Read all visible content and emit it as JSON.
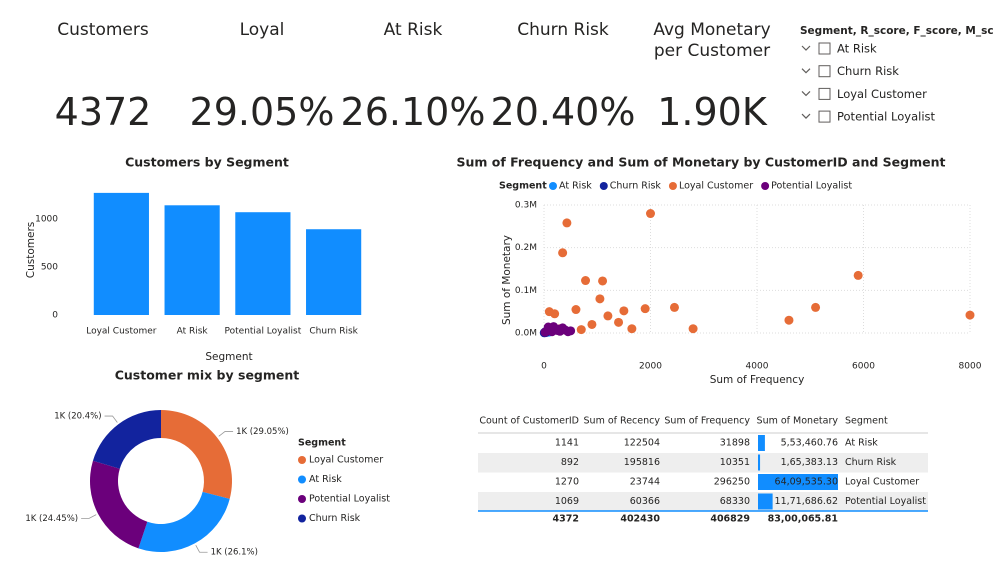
{
  "cards": [
    {
      "label": "Customers",
      "value": "4372"
    },
    {
      "label": "Loyal",
      "value": "29.05%"
    },
    {
      "label": "At Risk",
      "value": "26.10%"
    },
    {
      "label": "Churn Risk",
      "value": "20.40%"
    },
    {
      "label": "Avg Monetary per Customer",
      "value": "1.90K"
    }
  ],
  "slicer": {
    "title": "Segment, R_score, F_score, M_score",
    "items": [
      "At Risk",
      "Churn Risk",
      "Loyal Customer",
      "Potential Loyalist"
    ]
  },
  "chart_data": [
    {
      "type": "bar",
      "title": "Customers by Segment",
      "x_label": "Segment",
      "y_label": "Customers",
      "categories": [
        "Loyal Customer",
        "At Risk",
        "Potential Loyalist",
        "Churn Risk"
      ],
      "values": [
        1270,
        1141,
        1069,
        892
      ],
      "color": "#118DFF",
      "ylim": [
        0,
        1300
      ],
      "yticks": [
        0,
        500,
        1000
      ]
    },
    {
      "type": "scatter",
      "title": "Sum of Frequency and Sum of Monetary by CustomerID and Segment",
      "legend_title": "Segment",
      "x_label": "Sum of Frequency",
      "y_label": "Sum of Monetary",
      "grid": true,
      "xlim": [
        0,
        8000
      ],
      "xticks": [
        0,
        2000,
        4000,
        6000,
        8000
      ],
      "ylim": [
        0,
        300000
      ],
      "yticks": [
        {
          "value": 0,
          "label": "0.0M"
        },
        {
          "value": 100000,
          "label": "0.1M"
        },
        {
          "value": 200000,
          "label": "0.2M"
        },
        {
          "value": 300000,
          "label": "0.3M"
        }
      ],
      "series": [
        {
          "name": "At Risk",
          "color": "#118DFF",
          "x": [
            10,
            40,
            90,
            130,
            70
          ],
          "values": [
            1000,
            3000,
            2000,
            4000,
            6000
          ]
        },
        {
          "name": "Churn Risk",
          "color": "#12239E",
          "x": [
            5,
            20,
            35,
            50,
            25
          ],
          "values": [
            500,
            1500,
            1000,
            2500,
            3000
          ]
        },
        {
          "name": "Loyal Customer",
          "color": "#E66C37",
          "x": [
            2000,
            430,
            350,
            5900,
            780,
            1100,
            1050,
            5100,
            4600,
            8000,
            2450,
            1900,
            1500,
            2800,
            1200,
            1400,
            1650,
            900,
            200,
            100,
            600,
            300,
            700
          ],
          "values": [
            280000,
            258000,
            188000,
            135000,
            123000,
            122000,
            80000,
            60000,
            30000,
            42000,
            60000,
            57000,
            52000,
            10000,
            40000,
            25000,
            10000,
            20000,
            45000,
            50000,
            55000,
            10000,
            8000
          ]
        },
        {
          "name": "Potential Loyalist",
          "color": "#6B007B",
          "x": [
            20,
            60,
            100,
            150,
            200,
            250,
            300,
            350,
            400,
            450,
            500,
            80,
            180,
            280
          ],
          "values": [
            2000,
            5000,
            8000,
            3000,
            10000,
            6000,
            4000,
            12000,
            7000,
            3000,
            5000,
            14000,
            15000,
            9000
          ]
        }
      ]
    },
    {
      "type": "donut",
      "title": "Customer mix by segment",
      "legend_title": "Segment",
      "categories": [
        "Loyal Customer",
        "At Risk",
        "Potential Loyalist",
        "Churn Risk"
      ],
      "values": [
        29.05,
        26.1,
        24.45,
        20.4
      ],
      "value_labels": [
        "1K (29.05%)",
        "1K (26.1%)",
        "1K (24.45%)",
        "1K (20.4%)"
      ],
      "colors": [
        "#E66C37",
        "#118DFF",
        "#6B007B",
        "#12239E"
      ]
    }
  ],
  "table": {
    "columns": [
      "Count of CustomerID",
      "Sum of Recency",
      "Sum of Frequency",
      "Sum of Monetary",
      "Segment"
    ],
    "rows": [
      [
        1141,
        122504,
        31898,
        {
          "value": 553460.76,
          "label": "5,53,460.76"
        },
        "At Risk"
      ],
      [
        892,
        195816,
        10351,
        {
          "value": 165383.13,
          "label": "1,65,383.13"
        },
        "Churn Risk"
      ],
      [
        1270,
        23744,
        296250,
        {
          "value": 6409535.3,
          "label": "64,09,535.30"
        },
        "Loyal Customer"
      ],
      [
        1069,
        60366,
        68330,
        {
          "value": 1171686.62,
          "label": "11,71,686.62"
        },
        "Potential Loyalist"
      ]
    ],
    "total": [
      4372,
      402430,
      406829,
      {
        "value": 8300065.81,
        "label": "83,00,065.81"
      }
    ]
  }
}
